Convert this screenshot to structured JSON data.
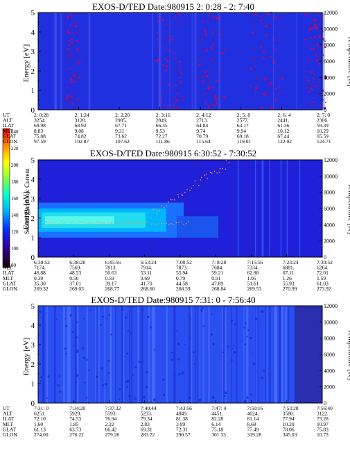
{
  "colorbar": {
    "label": "Second Harmonic Current",
    "ticks": [
      "240",
      "220",
      "200",
      "180",
      "160",
      "140",
      "120",
      "100",
      "80"
    ]
  },
  "chart_data": [
    {
      "type": "heatmap",
      "title": "EXOS-D/TED   Date:980915   2: 0:28 - 2: 7:40",
      "ylabel": "Energy [eV]",
      "y2label": "Temperature [K]",
      "ylim": [
        0,
        5
      ],
      "y_ticks": [
        "5",
        "4",
        "3",
        "2",
        "1",
        "0"
      ],
      "y2lim": [
        0,
        12000
      ],
      "y2_ticks": [
        "12000",
        "10000",
        "8000",
        "6000",
        "4000",
        "2000",
        "0"
      ],
      "orbit_labels": [
        "UT",
        "ALT",
        "ILAT",
        "MLT",
        "GLAT",
        "GLON"
      ],
      "orbit_columns": [
        [
          "2: 0:28",
          "3254.",
          "69.98",
          "8.83",
          "75.88",
          "97.59"
        ],
        [
          "2: 1:24",
          "3120.",
          "68.92",
          "9.08",
          "74.82",
          "102.87"
        ],
        [
          "2: 2:20",
          "2985.",
          "67.71",
          "9.31",
          "73.62",
          "107.62"
        ],
        [
          "2: 3:16",
          "2849.",
          "66.35",
          "9.53",
          "72.27",
          "111.86"
        ],
        [
          "2: 4:12",
          "2713.",
          "64.84",
          "9.74",
          "70.79",
          "115.64"
        ],
        [
          "2: 5: 8",
          "2577.",
          "63.17",
          "9.94",
          "69.18",
          "119.01"
        ],
        [
          "2: 6: 4",
          "2441.",
          "61.36",
          "10.12",
          "67.44",
          "122.02"
        ],
        [
          "2: 7: 0",
          "2306.",
          "59.39",
          "10.29",
          "65.59",
          "124.71"
        ]
      ]
    },
    {
      "type": "heatmap",
      "title": "EXOS-D/TED   Date:980915   6:30:52 - 7:30:52",
      "ylabel": "Energy [eV]",
      "y2label": "Temperature [K]",
      "ylim": [
        0,
        5
      ],
      "y_ticks": [
        "5",
        "4",
        "3",
        "2",
        "1",
        "0"
      ],
      "y2lim": [
        0,
        12000
      ],
      "y2_ticks": [
        "12000",
        "10000",
        "8000",
        "6000",
        "4000",
        "2000",
        "0"
      ],
      "orbit_labels": [
        "UT",
        "ALT",
        "ILAT",
        "MLT",
        "GLAT",
        "GLON"
      ],
      "orbit_columns": [
        [
          "6:30:52",
          "7174.",
          "46.88",
          "0.39",
          "35.30",
          "269.32"
        ],
        [
          "6:38:28",
          "7569.",
          "48.53",
          "0.50",
          "37.01",
          "269.03"
        ],
        [
          "6:45:56",
          "7813.",
          "50.63",
          "0.59",
          "39.17",
          "268.77"
        ],
        [
          "6:53:24",
          "7914.",
          "53.11",
          "0.69",
          "41.70",
          "268.60"
        ],
        [
          "7:00:52",
          "7873.",
          "55.94",
          "0.79",
          "44.58",
          "268.59"
        ],
        [
          "7: 8:28",
          "7684.",
          "59.21",
          "0.91",
          "47.89",
          "268.84"
        ],
        [
          "7:15:56",
          "7334.",
          "62.88",
          "1.05",
          "51.61",
          "269.53"
        ],
        [
          "7:23:24",
          "6881.",
          "67.11",
          "1.26",
          "55.93",
          "270.99"
        ],
        [
          "7:30:52",
          "6264.",
          "72.01",
          "1.59",
          "61.03",
          "273.92"
        ]
      ]
    },
    {
      "type": "heatmap",
      "title": "EXOS-D/TED   Date:980915   7:31: 0 - 7:56:40",
      "ylabel": "Energy [eV]",
      "y2label": "Temperature [K]",
      "ylim": [
        0,
        5
      ],
      "y_ticks": [
        "5",
        "4",
        "3",
        "2",
        "1",
        "0"
      ],
      "y2lim": [
        0,
        12000
      ],
      "y2_ticks": [
        "12000",
        "10000",
        "8000",
        "6000",
        "4000",
        "2000",
        "0"
      ],
      "orbit_labels": [
        "UT",
        "ALT",
        "ILAT",
        "MLT",
        "GLAT",
        "GLON"
      ],
      "orbit_columns": [
        [
          "7:31: 0",
          "6251.",
          "72.10",
          "1.60",
          "61.13",
          "274.00"
        ],
        [
          "7:34:20",
          "5929.",
          "74.53",
          "1.85",
          "63.73",
          "276.22"
        ],
        [
          "7:37:32",
          "5593.",
          "76.94",
          "2.22",
          "66.42",
          "279.26"
        ],
        [
          "7:40:44",
          "5233.",
          "79.34",
          "2.83",
          "69.31",
          "283.72"
        ],
        [
          "7:43:56",
          "4849.",
          "81.38",
          "3.99",
          "72.31",
          "290.57"
        ],
        [
          "7:47: 4",
          "4451.",
          "82.28",
          "6.14",
          "75.18",
          "301.33"
        ],
        [
          "7:50:16",
          "4024.",
          "81.14",
          "8.68",
          "77.49",
          "319.28"
        ],
        [
          "7:53:28",
          "3580.",
          "77.94",
          "10.20",
          "78.06",
          "345.03"
        ],
        [
          "7:56:40",
          "3122.",
          "73.28",
          "10.97",
          "75.83",
          "10.73"
        ]
      ]
    }
  ]
}
